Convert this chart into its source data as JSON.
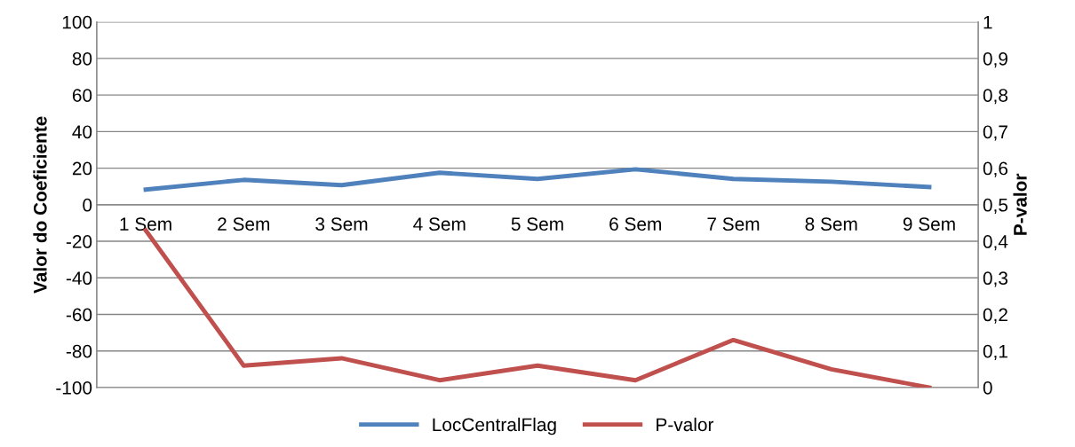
{
  "chart_data": {
    "type": "line",
    "ylabel": "Valor do Coeficiente",
    "y2label": "P-valor",
    "categories": [
      "1 Sem",
      "2 Sem",
      "3 Sem",
      "4 Sem",
      "5 Sem",
      "6 Sem",
      "7 Sem",
      "8 Sem",
      "9 Sem"
    ],
    "series": [
      {
        "name": "LocCentralFlag",
        "color": "#4f81bd",
        "values": [
          8.3,
          13.6,
          10.7,
          17.5,
          14.1,
          19.4,
          14.1,
          12.6,
          9.7
        ]
      },
      {
        "name": "P-valor",
        "color": "#c0504d",
        "axis": "y2",
        "values": [
          0.43,
          0.06,
          0.08,
          0.02,
          0.06,
          0.02,
          0.13,
          0.05,
          0.0
        ]
      }
    ],
    "ylim": [
      -100,
      100
    ],
    "yticks": [
      -100,
      -80,
      -60,
      -40,
      -20,
      0,
      20,
      40,
      60,
      80,
      100
    ],
    "y2lim": [
      0,
      1
    ],
    "y2ticks": [
      {
        "value": 0,
        "label": "0"
      },
      {
        "value": 0.1,
        "label": "0,1"
      },
      {
        "value": 0.2,
        "label": "0,2"
      },
      {
        "value": 0.3,
        "label": "0,3"
      },
      {
        "value": 0.4,
        "label": "0,4"
      },
      {
        "value": 0.5,
        "label": "0,5"
      },
      {
        "value": 0.6,
        "label": "0,6"
      },
      {
        "value": 0.7,
        "label": "0,7"
      },
      {
        "value": 0.8,
        "label": "0,8"
      },
      {
        "value": 0.9,
        "label": "0,9"
      },
      {
        "value": 1,
        "label": "1"
      }
    ],
    "grid": "y",
    "legend": "bottom",
    "marker": "none",
    "line_style": "solid"
  }
}
